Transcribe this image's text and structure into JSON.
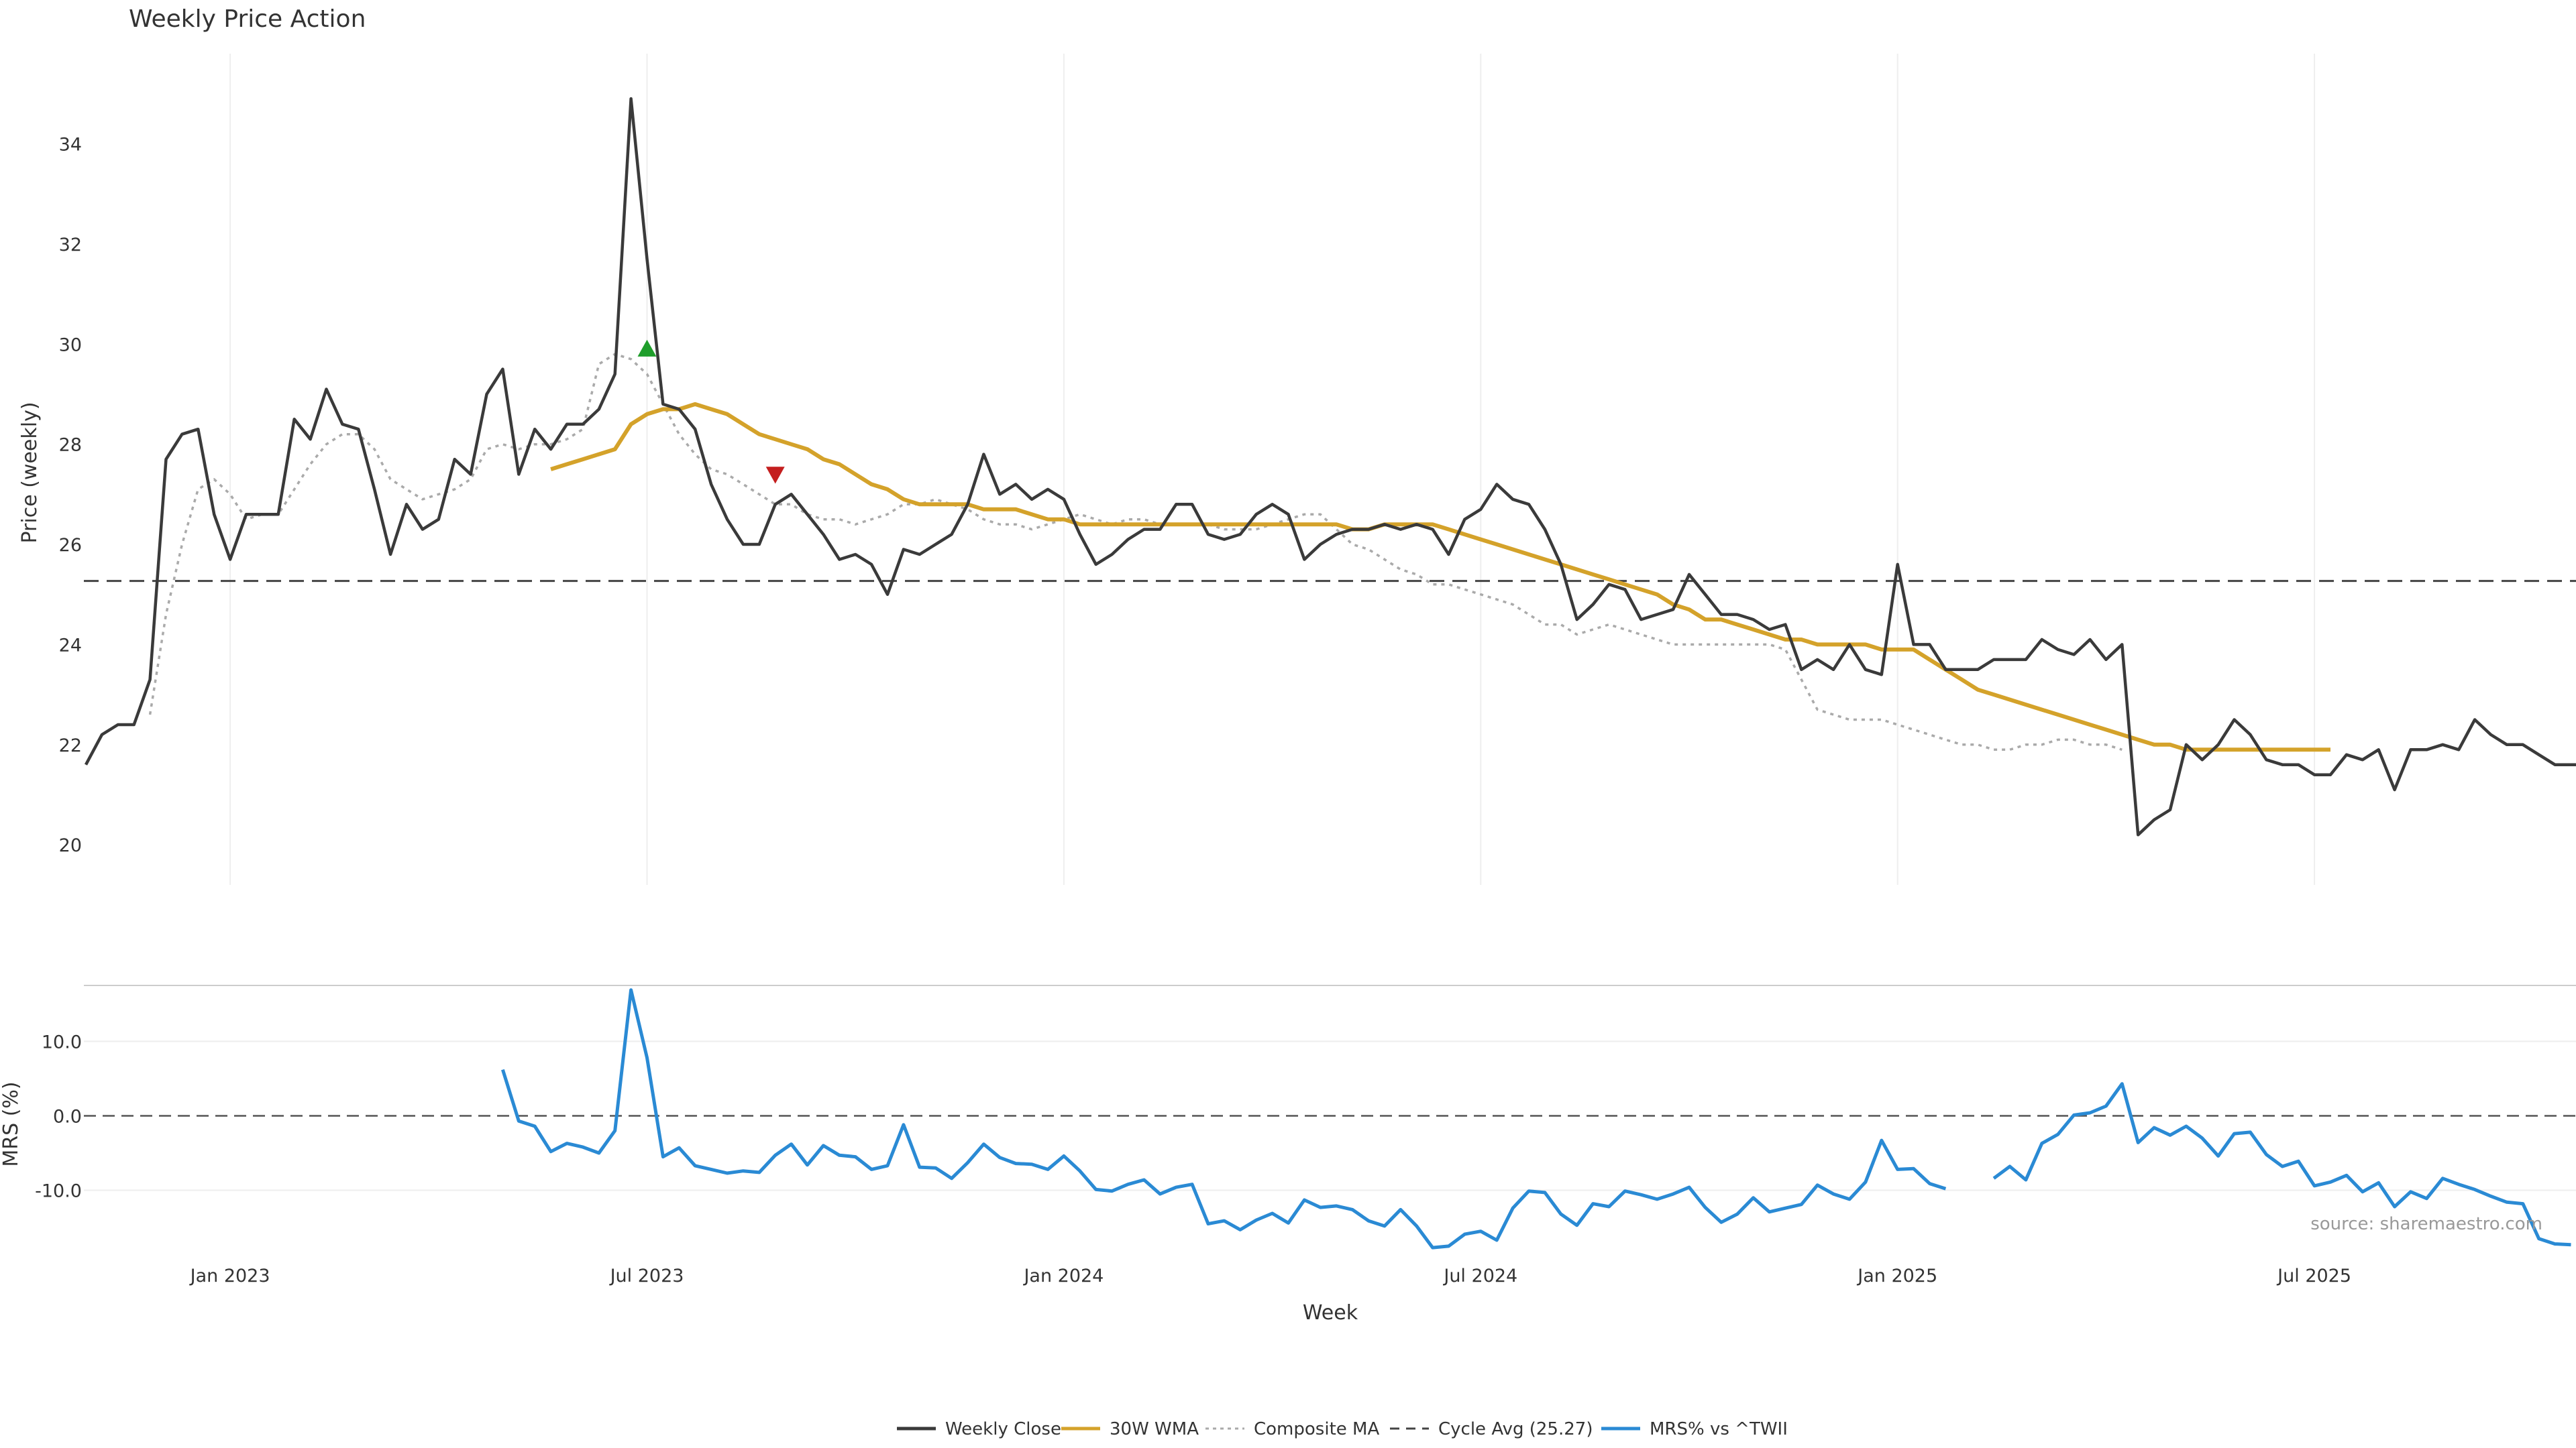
{
  "chart_data": [
    {
      "type": "line",
      "title": "Weekly Price Action",
      "xlabel": "",
      "ylabel": "Price (weekly)",
      "ylim": [
        19.2,
        35.8
      ],
      "yticks": [
        20,
        22,
        24,
        26,
        28,
        30,
        32,
        34
      ],
      "grid": "x-only",
      "cycle_avg": 25.27,
      "series": [
        {
          "name": "Weekly Close",
          "color": "#3a3a3a",
          "values": [
            21.6,
            22.2,
            22.4,
            22.4,
            23.3,
            27.7,
            28.2,
            28.3,
            26.6,
            25.7,
            26.6,
            26.6,
            26.6,
            28.5,
            28.1,
            29.1,
            28.4,
            28.3,
            27.1,
            25.8,
            26.8,
            26.3,
            26.5,
            27.7,
            27.4,
            29.0,
            29.5,
            27.4,
            28.3,
            27.9,
            28.4,
            28.4,
            28.7,
            29.4,
            34.9,
            31.7,
            28.8,
            28.7,
            28.3,
            27.2,
            26.5,
            26.0,
            26.0,
            26.8,
            27.0,
            26.6,
            26.2,
            25.7,
            25.8,
            25.6,
            25.0,
            25.9,
            25.8,
            26.0,
            26.2,
            26.8,
            27.8,
            27.0,
            27.2,
            26.9,
            27.1,
            26.9,
            26.2,
            25.6,
            25.8,
            26.1,
            26.3,
            26.3,
            26.8,
            26.8,
            26.2,
            26.1,
            26.2,
            26.6,
            26.8,
            26.6,
            25.7,
            26.0,
            26.2,
            26.3,
            26.3,
            26.4,
            26.3,
            26.4,
            26.3,
            25.8,
            26.5,
            26.7,
            27.2,
            26.9,
            26.8,
            26.3,
            25.6,
            24.5,
            24.8,
            25.2,
            25.1,
            24.5,
            24.6,
            24.7,
            25.4,
            25.0,
            24.6,
            24.6,
            24.5,
            24.3,
            24.4,
            23.5,
            23.7,
            23.5,
            24.0,
            23.5,
            23.4,
            25.6,
            24.0,
            24.0,
            23.5,
            23.5,
            23.5,
            23.7,
            23.7,
            23.7,
            24.1,
            23.9,
            23.8,
            24.1,
            23.7,
            24.0,
            20.2,
            20.5,
            20.7,
            22.0,
            21.7,
            22.0,
            22.5,
            22.2,
            21.7,
            21.6,
            21.6,
            21.4,
            21.4,
            21.8,
            21.7,
            21.9,
            21.1,
            21.9,
            21.9,
            22.0,
            21.9,
            22.5,
            22.2,
            22.0,
            22.0,
            21.8,
            21.6,
            21.6,
            21.6
          ]
        },
        {
          "name": "30W WMA",
          "color": "#d4a22a",
          "start_index": 29,
          "values": [
            27.5,
            27.6,
            27.7,
            27.8,
            27.9,
            28.4,
            28.6,
            28.7,
            28.7,
            28.8,
            28.7,
            28.6,
            28.4,
            28.2,
            28.1,
            28.0,
            27.9,
            27.7,
            27.6,
            27.4,
            27.2,
            27.1,
            26.9,
            26.8,
            26.8,
            26.8,
            26.8,
            26.7,
            26.7,
            26.7,
            26.6,
            26.5,
            26.5,
            26.4,
            26.4,
            26.4,
            26.4,
            26.4,
            26.4,
            26.4,
            26.4,
            26.4,
            26.4,
            26.4,
            26.4,
            26.4,
            26.4,
            26.4,
            26.4,
            26.4,
            26.3,
            26.3,
            26.4,
            26.4,
            26.4,
            26.4,
            26.3,
            26.2,
            26.1,
            26.0,
            25.9,
            25.8,
            25.7,
            25.6,
            25.5,
            25.4,
            25.3,
            25.2,
            25.1,
            25.0,
            24.8,
            24.7,
            24.5,
            24.5,
            24.4,
            24.3,
            24.2,
            24.1,
            24.1,
            24.0,
            24.0,
            24.0,
            24.0,
            23.9,
            23.9,
            23.9,
            23.7,
            23.5,
            23.3,
            23.1,
            23.0,
            22.9,
            22.8,
            22.7,
            22.6,
            22.5,
            22.4,
            22.3,
            22.2,
            22.1,
            22.0,
            22.0,
            21.9,
            21.9,
            21.9,
            21.9,
            21.9,
            21.9,
            21.9,
            21.9,
            21.9,
            21.9
          ]
        },
        {
          "name": "Composite MA",
          "color": "#aaaaaa",
          "start_index": 4,
          "values": [
            22.6,
            24.6,
            26.0,
            27.1,
            27.3,
            27.0,
            26.5,
            26.6,
            26.6,
            27.1,
            27.6,
            28.0,
            28.2,
            28.2,
            27.9,
            27.3,
            27.1,
            26.9,
            27.0,
            27.1,
            27.3,
            27.9,
            28.0,
            27.9,
            28.0,
            28.0,
            28.1,
            28.3,
            29.6,
            29.8,
            29.7,
            29.4,
            28.8,
            28.2,
            27.8,
            27.5,
            27.4,
            27.2,
            27.0,
            26.8,
            26.8,
            26.6,
            26.5,
            26.5,
            26.4,
            26.5,
            26.6,
            26.8,
            26.8,
            26.9,
            26.8,
            26.7,
            26.5,
            26.4,
            26.4,
            26.3,
            26.4,
            26.5,
            26.6,
            26.5,
            26.4,
            26.5,
            26.5,
            26.4,
            26.4,
            26.4,
            26.4,
            26.3,
            26.3,
            26.3,
            26.4,
            26.5,
            26.6,
            26.6,
            26.3,
            26.0,
            25.9,
            25.7,
            25.5,
            25.4,
            25.2,
            25.2,
            25.1,
            25.0,
            24.9,
            24.8,
            24.6,
            24.4,
            24.4,
            24.2,
            24.3,
            24.4,
            24.3,
            24.2,
            24.1,
            24.0,
            24.0,
            24.0,
            24.0,
            24.0,
            24.0,
            24.0,
            23.9,
            23.3,
            22.7,
            22.6,
            22.5,
            22.5,
            22.5,
            22.4,
            22.3,
            22.2,
            22.1,
            22.0,
            22.0,
            21.9,
            21.9,
            22.0,
            22.0,
            22.1,
            22.1,
            22.0,
            22.0,
            21.9
          ]
        },
        {
          "name": "Cycle Avg (25.27)",
          "color": "#444444"
        }
      ],
      "markers": [
        {
          "type": "buy",
          "index": 35,
          "value": 29.9,
          "color": "#1f9e2b"
        },
        {
          "type": "sell",
          "index": 43,
          "value": 27.4,
          "color": "#c41e1e"
        }
      ]
    },
    {
      "type": "line",
      "title": "",
      "xlabel": "Week",
      "ylabel": "MRS (%)",
      "ylim": [
        -18.5,
        17.5
      ],
      "yticks": [
        {
          "value": 10,
          "label": "10.0"
        },
        {
          "value": 0,
          "label": "0.0"
        },
        {
          "value": -10,
          "label": "-10.0"
        }
      ],
      "x_ticks": [
        {
          "index": 9,
          "label": "Jan 2023"
        },
        {
          "index": 35,
          "label": "Jul 2023"
        },
        {
          "index": 61,
          "label": "Jan 2024"
        },
        {
          "index": 87,
          "label": "Jul 2024"
        },
        {
          "index": 113,
          "label": "Jan 2025"
        },
        {
          "index": 139,
          "label": "Jul 2025"
        }
      ],
      "series": [
        {
          "name": "MRS% vs ^TWII",
          "color": "#2a8ad4",
          "start_index": 26,
          "values": [
            6.2,
            -0.7,
            -1.4,
            -4.8,
            -3.7,
            -4.2,
            -5.0,
            -2.0,
            16.9,
            7.8,
            -5.5,
            -4.3,
            -6.7,
            -7.2,
            -7.7,
            -7.4,
            -7.6,
            -5.3,
            -3.8,
            -6.6,
            -4.0,
            -5.3,
            -5.5,
            -7.2,
            -6.7,
            -1.2,
            -6.9,
            -7.0,
            -8.4,
            -6.3,
            -3.8,
            -5.6,
            -6.4,
            -6.5,
            -7.2,
            -5.4,
            -7.4,
            -9.9,
            -10.1,
            -9.2,
            -8.6,
            -10.5,
            -9.6,
            -9.2,
            -14.5,
            -14.1,
            -15.3,
            -14.0,
            -13.1,
            -14.4,
            -11.3,
            -12.3,
            -12.1,
            -12.6,
            -14.1,
            -14.8,
            -12.6,
            -14.8,
            -17.7,
            -17.5,
            -15.9,
            -15.5,
            -16.7,
            -12.4,
            -10.1,
            -10.3,
            -13.2,
            -14.7,
            -11.8,
            -12.2,
            -10.1,
            -10.6,
            -11.2,
            -10.5,
            -9.6,
            -12.3,
            -14.3,
            -13.2,
            -11.0,
            -12.9,
            -12.4,
            -11.9,
            -9.3,
            -10.5,
            -11.2,
            -8.9,
            -3.3,
            -7.2,
            -7.1,
            -9.1,
            -9.8,
            null,
            null,
            -8.4,
            -6.8,
            -8.6,
            -3.7,
            -2.5,
            0.1,
            0.4,
            1.3,
            4.3,
            -3.6,
            -1.6,
            -2.6,
            -1.4,
            -3.0,
            -5.4,
            -2.4,
            -2.2,
            -5.2,
            -6.8,
            -6.1,
            -9.4,
            -8.9,
            -8.0,
            -10.2,
            -9.0,
            -12.2,
            -10.2,
            -11.1,
            -8.4,
            -9.2,
            -9.9,
            -10.8,
            -11.6,
            -11.8,
            -16.5,
            -17.2,
            -17.3
          ]
        }
      ],
      "annotation": "source: sharemaestro.com"
    }
  ],
  "legend": {
    "placement": "bottom-center",
    "items": [
      {
        "label": "Weekly Close",
        "style": "solid",
        "color": "#3a3a3a"
      },
      {
        "label": "30W WMA",
        "style": "solid",
        "color": "#d4a22a"
      },
      {
        "label": "Composite MA",
        "style": "dotted",
        "color": "#aaaaaa"
      },
      {
        "label": "Cycle Avg (25.27)",
        "style": "dashed",
        "color": "#444444"
      },
      {
        "label": "MRS% vs ^TWII",
        "style": "solid",
        "color": "#2a8ad4"
      }
    ]
  }
}
